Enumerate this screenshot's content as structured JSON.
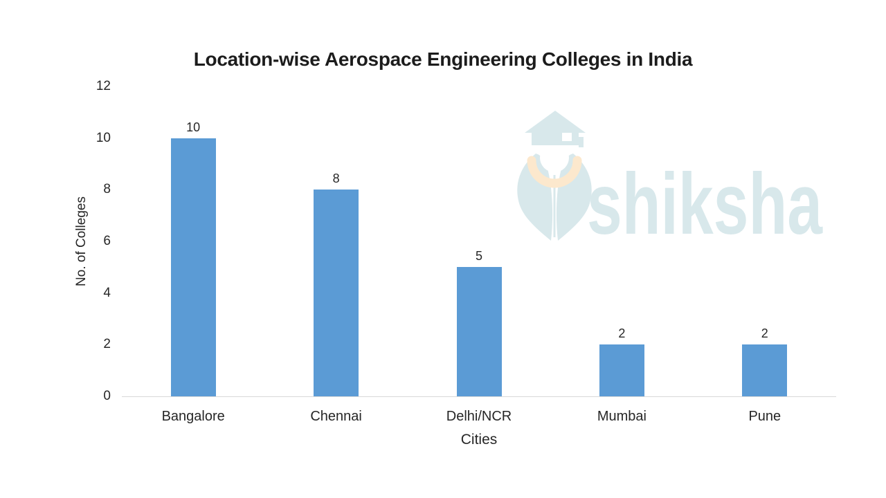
{
  "chart_data": {
    "type": "bar",
    "title": "Location-wise Aerospace Engineering Colleges in India",
    "categories": [
      "Bangalore",
      "Chennai",
      "Delhi/NCR",
      "Mumbai",
      "Pune"
    ],
    "values": [
      10,
      8,
      5,
      2,
      2
    ],
    "data_labels": [
      "10",
      "8",
      "5",
      "2",
      "2"
    ],
    "xlabel": "Cities",
    "ylabel": "No. of Colleges",
    "ylim": [
      0,
      12
    ],
    "yticks": [
      0,
      2,
      4,
      6,
      8,
      10,
      12
    ],
    "grid": "off",
    "legend": "none",
    "bar_color": "#5B9BD5",
    "axis_line_color": "#D9D9D9",
    "label_color": "#262626",
    "title_color": "#1C1C1C"
  },
  "watermark": {
    "text": "shiksha",
    "icon": "graduate-pen-nib-with-mortarboard",
    "color": "#D8E8EB",
    "accent_color": "#FCE8CD"
  }
}
